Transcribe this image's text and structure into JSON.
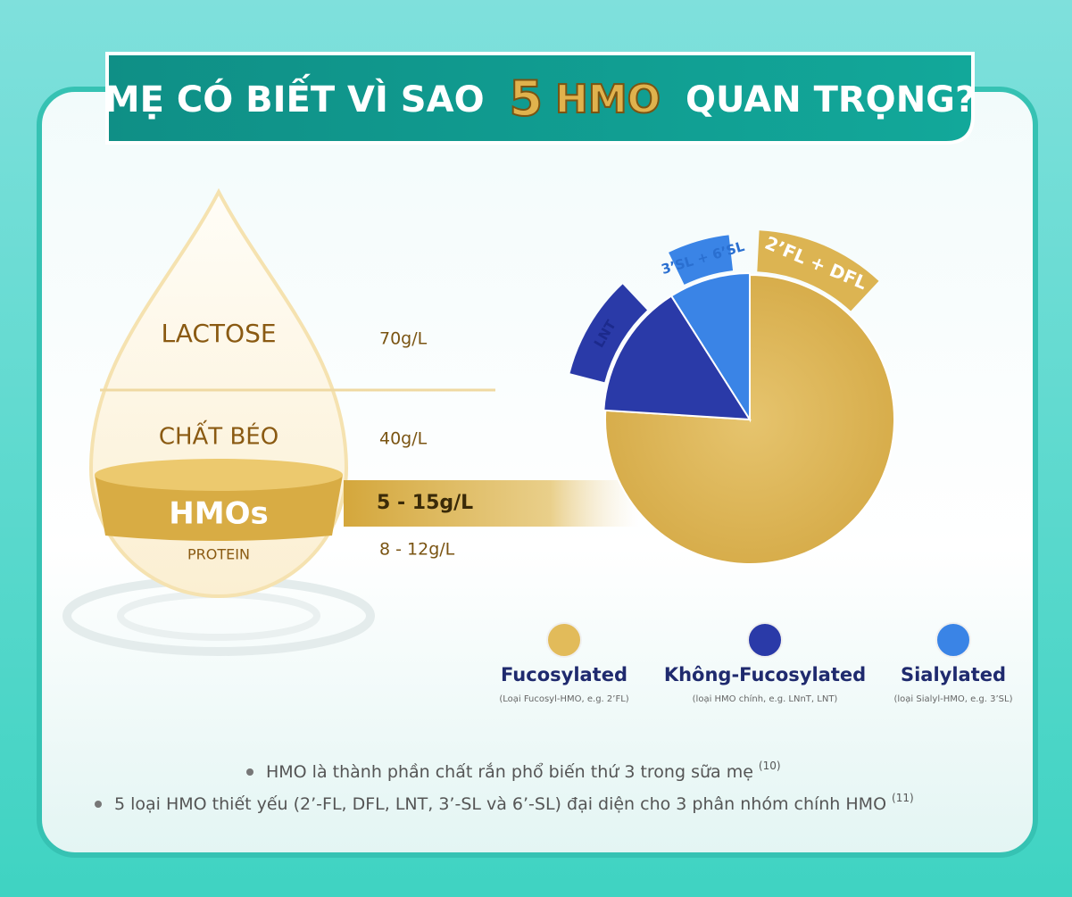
{
  "header": {
    "title_parts": [
      "MẸ CÓ BIẾT VÌ SAO",
      "5",
      "HMO",
      "QUAN TRỌNG?"
    ]
  },
  "composition": {
    "layers": [
      {
        "name": "LACTOSE",
        "amount": "70g/L"
      },
      {
        "name": "CHẤT BÉO",
        "amount": "40g/L"
      },
      {
        "name": "HMOs",
        "amount": "5 - 15g/L"
      },
      {
        "name": "PROTEIN",
        "amount": "8 - 12g/L"
      }
    ]
  },
  "chart_data": {
    "type": "pie",
    "categories": [
      "Fucosylated",
      "Không-Fucosylated",
      "Sialylated"
    ],
    "values": [
      76,
      15,
      9
    ],
    "colors": [
      "#e2bb5a",
      "#2a3aa8",
      "#3a84e6"
    ],
    "slice_labels": [
      "2’FL + DFL",
      "LNT",
      "3’SL + 6’SL"
    ],
    "notes": [
      "(Loại Fucosyl-HMO, e.g. 2’FL)",
      "(loại HMO chính, e.g. LNnT, LNT)",
      "(loại Sialyl-HMO, e.g. 3’SL)"
    ]
  },
  "footnotes": [
    {
      "text": "HMO là thành phần chất rắn phổ biến thứ 3 trong sữa mẹ",
      "ref": "(10)"
    },
    {
      "text": "5 loại HMO thiết yếu (2’-FL, DFL, LNT, 3’-SL và 6’-SL) đại diện cho 3 phân nhóm chính HMO",
      "ref": "(11)"
    }
  ]
}
